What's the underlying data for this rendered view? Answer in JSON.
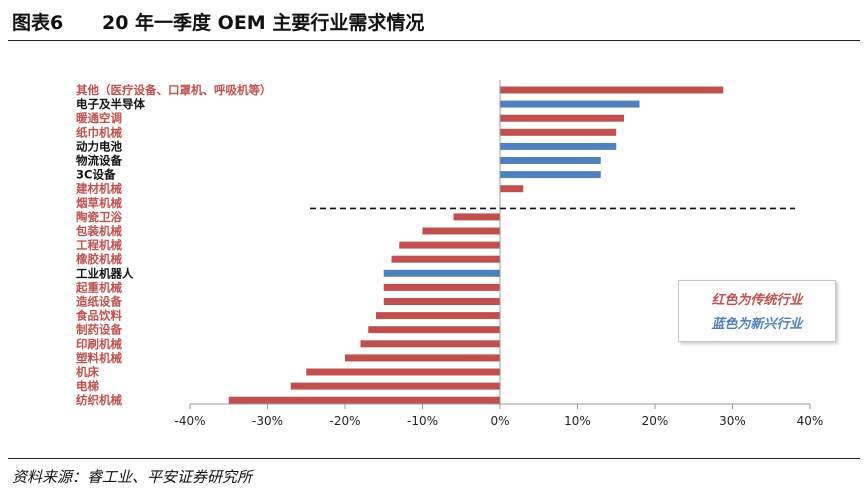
{
  "header": {
    "figure_label": "图表6",
    "title": "20 年一季度 OEM 主要行业需求情况"
  },
  "source": "资料来源：睿工业、平安证券研究所",
  "legend": {
    "traditional": "红色为传统行业",
    "emerging": "蓝色为新兴行业"
  },
  "colors": {
    "traditional": "#c0504d",
    "emerging": "#4f81bd",
    "traditional_label": "#c0504d",
    "emerging_label": "#111111"
  },
  "chart_data": {
    "type": "bar",
    "orientation": "horizontal",
    "title": "20 年一季度 OEM 主要行业需求情况",
    "xlim": [
      -40,
      40
    ],
    "x_ticks": [
      "-40%",
      "-30%",
      "-20%",
      "-10%",
      "0%",
      "10%",
      "20%",
      "30%",
      "40%"
    ],
    "unit": "%",
    "categories": [
      "其他（医疗设备、口罩机、呼吸机等）",
      "电子及半导体",
      "暖通空调",
      "纸巾机械",
      "动力电池",
      "物流设备",
      "3C设备",
      "建材机械",
      "烟草机械",
      "陶瓷卫浴",
      "包装机械",
      "工程机械",
      "橡胶机械",
      "工业机器人",
      "起重机械",
      "造纸设备",
      "食品饮料",
      "制药设备",
      "印刷机械",
      "塑料机械",
      "机床",
      "电梯",
      "纺织机械"
    ],
    "values": [
      28.8,
      18.0,
      16.0,
      15.0,
      15.0,
      13.0,
      13.0,
      3.0,
      0.0,
      -6.0,
      -10.0,
      -13.0,
      -14.0,
      -15.0,
      -15.0,
      -15.0,
      -16.0,
      -17.0,
      -18.0,
      -20.0,
      -25.0,
      -27.0,
      -35.0
    ],
    "group": [
      "traditional",
      "emerging",
      "traditional",
      "traditional",
      "emerging",
      "emerging",
      "emerging",
      "traditional",
      "traditional",
      "traditional",
      "traditional",
      "traditional",
      "traditional",
      "emerging",
      "traditional",
      "traditional",
      "traditional",
      "traditional",
      "traditional",
      "traditional",
      "traditional",
      "traditional",
      "traditional"
    ],
    "grid": false,
    "legend_position": "bottom-right"
  }
}
